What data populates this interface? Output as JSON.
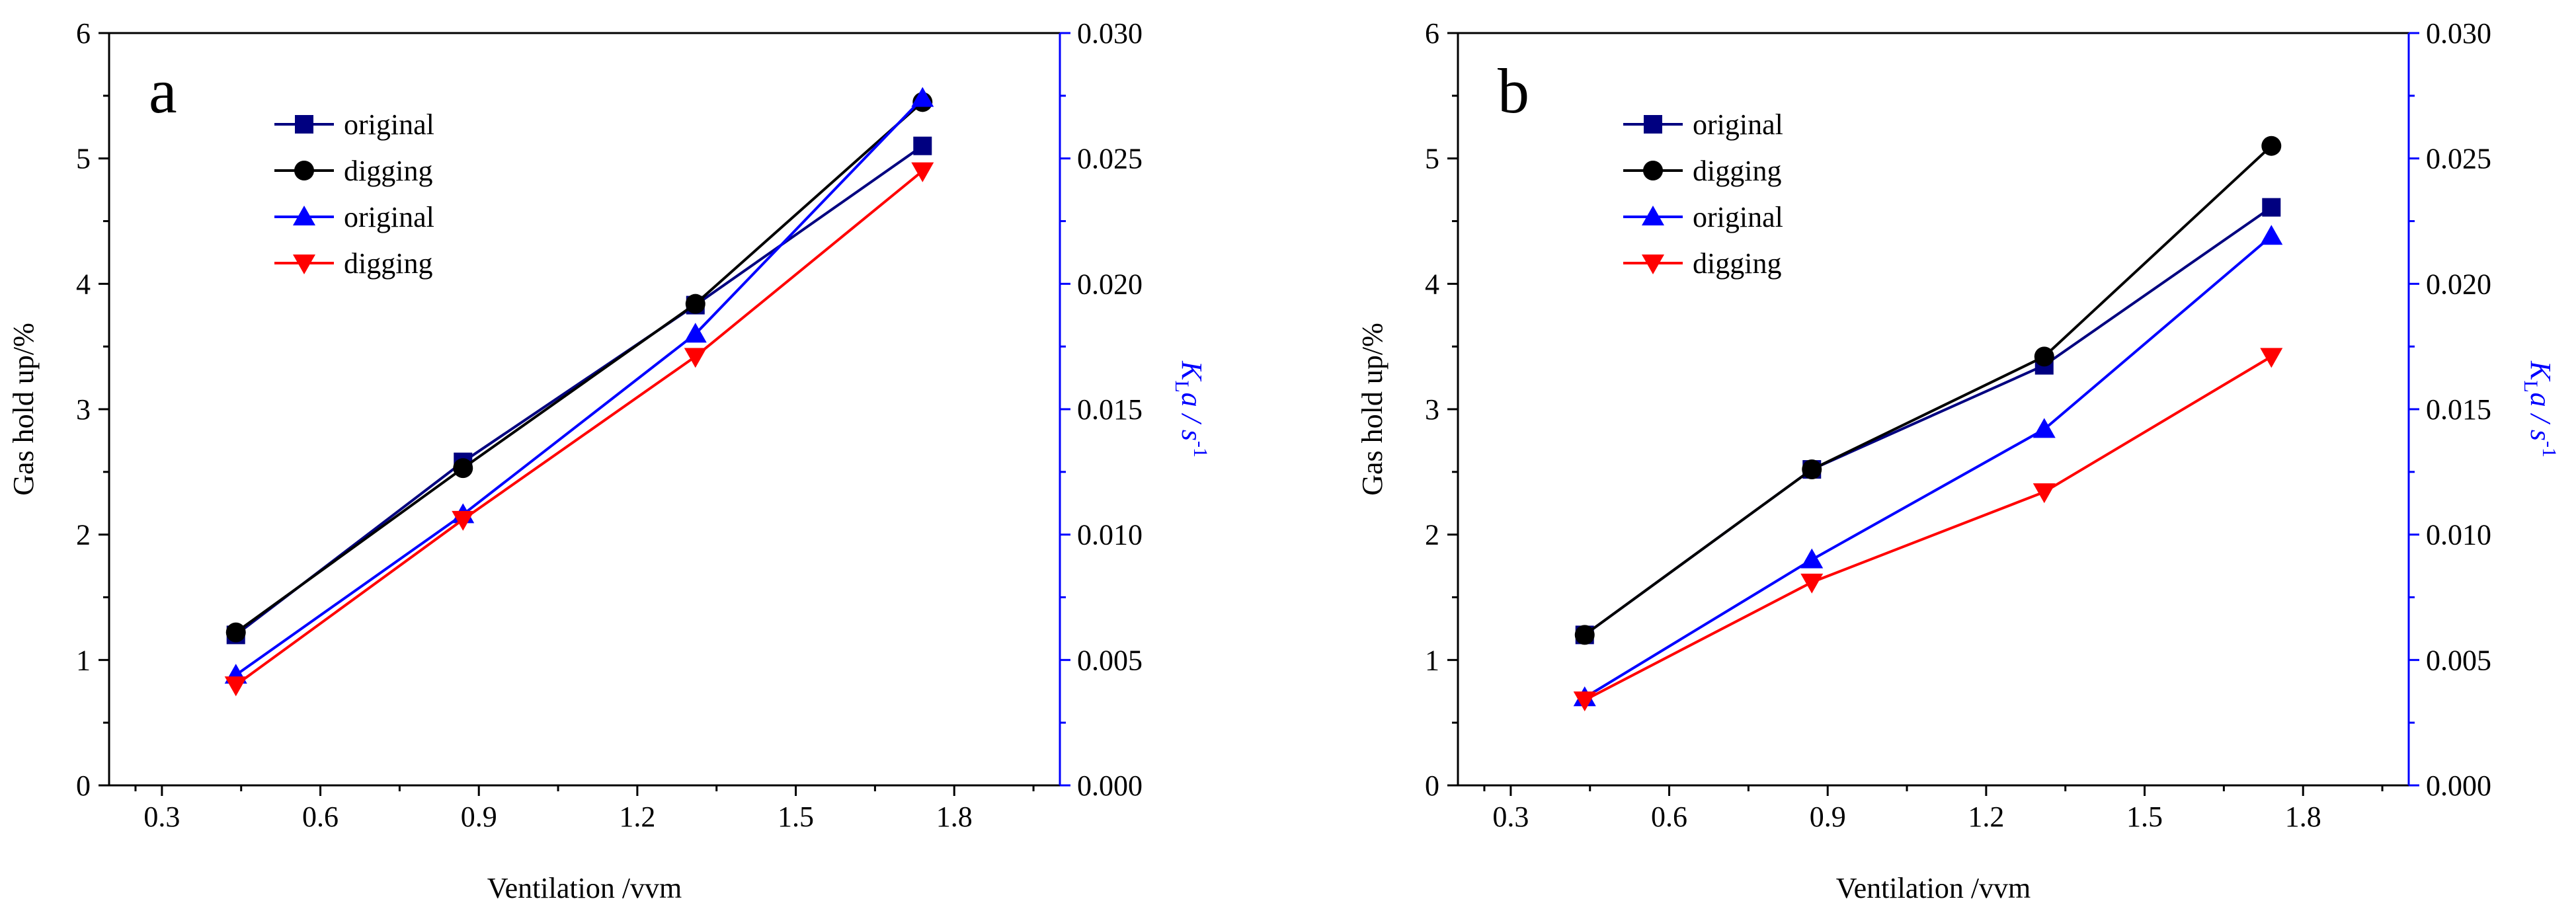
{
  "chart_data": [
    {
      "type": "line",
      "panel_label": "a",
      "xlabel": "Ventilation /vvm",
      "ylabel": "Gas hold up/%",
      "y2label": "K",
      "y2label_sub": "L",
      "y2label_rest": "a / s",
      "y2label_sup": "-1",
      "xlim": [
        0.2,
        2.0
      ],
      "ylim": [
        0,
        6
      ],
      "y2lim": [
        0,
        0.03
      ],
      "x_ticks": [
        "0.3",
        "0.6",
        "0.9",
        "1.2",
        "1.5",
        "1.8"
      ],
      "y_ticks": [
        "0",
        "1",
        "2",
        "3",
        "4",
        "5",
        "6"
      ],
      "y2_ticks": [
        "0.000",
        "0.005",
        "0.010",
        "0.015",
        "0.020",
        "0.025",
        "0.030"
      ],
      "x": [
        0.44,
        0.87,
        1.31,
        1.74
      ],
      "series": [
        {
          "name": "original",
          "axis": "left",
          "color": "#000080",
          "marker": "square",
          "values": [
            1.2,
            2.58,
            3.83,
            5.1
          ]
        },
        {
          "name": "digging",
          "axis": "left",
          "color": "#000000",
          "marker": "circle",
          "values": [
            1.22,
            2.53,
            3.84,
            5.45
          ]
        },
        {
          "name": "original",
          "axis": "right",
          "color": "#0000ff",
          "marker": "triangle-up",
          "values": [
            0.0044,
            0.0108,
            0.018,
            0.0274
          ]
        },
        {
          "name": "digging",
          "axis": "right",
          "color": "#ff0000",
          "marker": "triangle-down",
          "values": [
            0.004,
            0.0106,
            0.0171,
            0.0245
          ]
        }
      ]
    },
    {
      "type": "line",
      "panel_label": "b",
      "xlabel": "Ventilation /vvm",
      "ylabel": "Gas hold up/%",
      "y2label": "K",
      "y2label_sub": "L",
      "y2label_rest": "a / s",
      "y2label_sup": "-1",
      "xlim": [
        0.2,
        2.0
      ],
      "ylim": [
        0,
        6
      ],
      "y2lim": [
        0,
        0.03
      ],
      "x_ticks": [
        "0.3",
        "0.6",
        "0.9",
        "1.2",
        "1.5",
        "1.8"
      ],
      "y_ticks": [
        "0",
        "1",
        "2",
        "3",
        "4",
        "5",
        "6"
      ],
      "y2_ticks": [
        "0.000",
        "0.005",
        "0.010",
        "0.015",
        "0.020",
        "0.025",
        "0.030"
      ],
      "x": [
        0.44,
        0.87,
        1.31,
        1.74
      ],
      "series": [
        {
          "name": "original",
          "axis": "left",
          "color": "#000080",
          "marker": "square",
          "values": [
            1.2,
            2.52,
            3.35,
            4.61
          ]
        },
        {
          "name": "digging",
          "axis": "left",
          "color": "#000000",
          "marker": "circle",
          "values": [
            1.2,
            2.52,
            3.42,
            5.1
          ]
        },
        {
          "name": "original",
          "axis": "right",
          "color": "#0000ff",
          "marker": "triangle-up",
          "values": [
            0.0035,
            0.009,
            0.0142,
            0.0219
          ]
        },
        {
          "name": "digging",
          "axis": "right",
          "color": "#ff0000",
          "marker": "triangle-down",
          "values": [
            0.0034,
            0.0081,
            0.0117,
            0.0171
          ]
        }
      ]
    }
  ]
}
